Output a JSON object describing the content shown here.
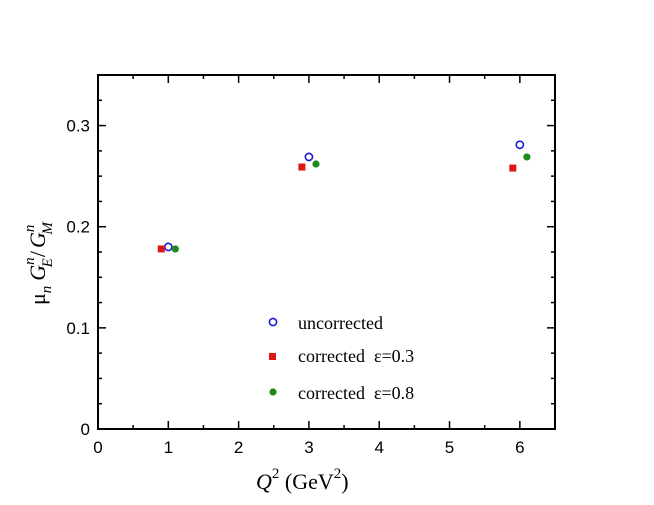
{
  "chart_data": {
    "type": "scatter",
    "x_axis": {
      "label_var": "Q",
      "label_sup": "2",
      "label_unit_open": " (GeV",
      "label_unit_sup": "2",
      "label_unit_close": ")",
      "range": [
        0,
        6.5
      ],
      "ticks": [
        "0",
        "1",
        "2",
        "3",
        "4",
        "5",
        "6"
      ]
    },
    "y_axis": {
      "label_mu": "μ",
      "label_mu_sub": "n",
      "label_num": "G",
      "label_num_sup": "n",
      "label_num_sub": "E",
      "label_slash": "/",
      "label_den": "G",
      "label_den_sup": "n",
      "label_den_sub": "M",
      "range": [
        0,
        0.35
      ],
      "ticks": [
        "0",
        "0.1",
        "0.2",
        "0.3"
      ]
    },
    "series": [
      {
        "name": "uncorrected",
        "marker": "open-circle",
        "color": "#1a1ad6",
        "x": [
          1.0,
          3.0,
          6.0
        ],
        "y": [
          0.18,
          0.269,
          0.281
        ]
      },
      {
        "name": "corrected  ε=0.3",
        "marker": "filled-square",
        "color": "#e01515",
        "x": [
          0.9,
          2.9,
          5.9
        ],
        "y": [
          0.178,
          0.259,
          0.258
        ]
      },
      {
        "name": "corrected  ε=0.8",
        "marker": "filled-circle",
        "color": "#1e8a1e",
        "x": [
          1.1,
          3.1,
          6.1
        ],
        "y": [
          0.178,
          0.262,
          0.269
        ]
      }
    ],
    "legend": {
      "placement": "lower-center",
      "entries": [
        "uncorrected",
        "corrected  ε=0.3",
        "corrected  ε=0.8"
      ]
    }
  }
}
